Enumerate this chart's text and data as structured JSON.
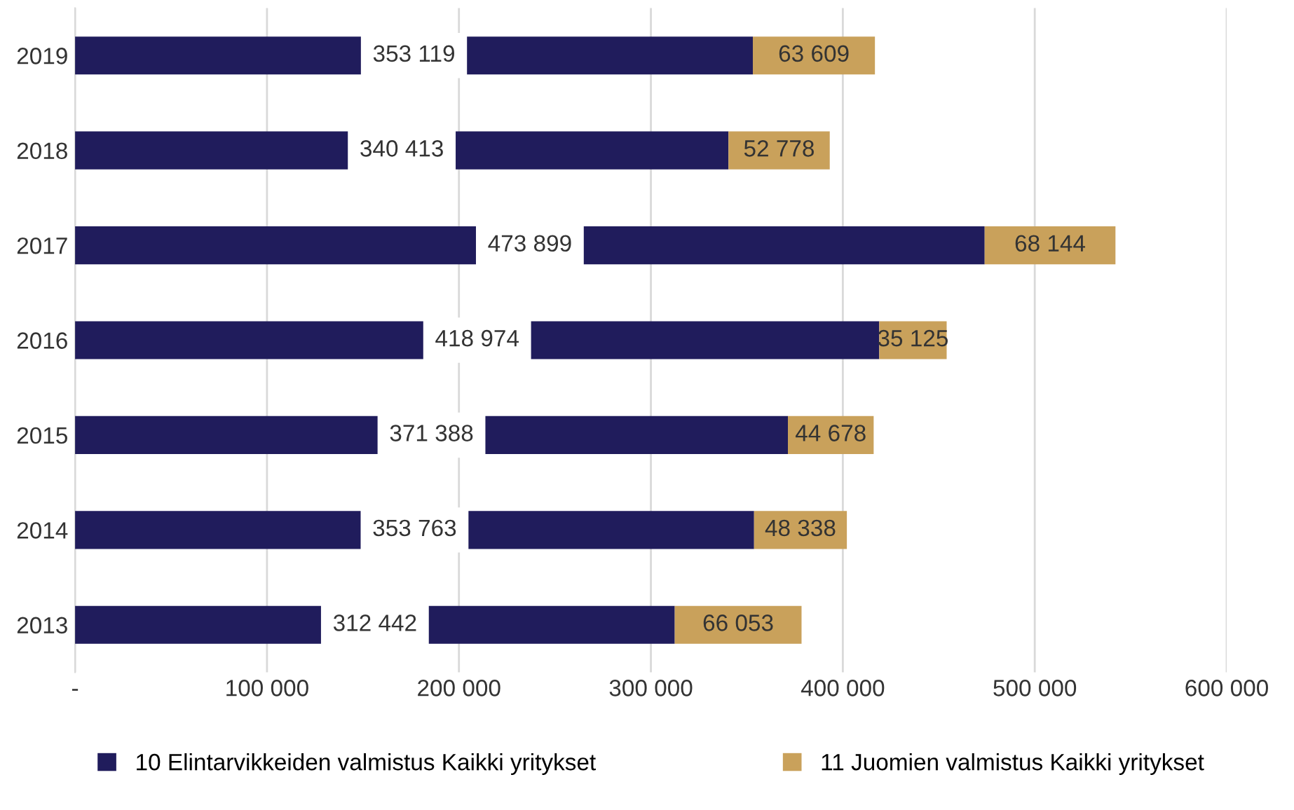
{
  "chart_data": {
    "type": "bar",
    "orientation": "horizontal",
    "stacked": true,
    "categories": [
      "2019",
      "2018",
      "2017",
      "2016",
      "2015",
      "2014",
      "2013"
    ],
    "series": [
      {
        "name": "10 Elintarvikkeiden valmistus Kaikki yritykset",
        "color": "#201c5c",
        "values": [
          353119,
          340413,
          473899,
          418974,
          371388,
          353763,
          312442
        ],
        "value_labels": [
          "353 119",
          "340 413",
          "473 899",
          "418 974",
          "371 388",
          "353 763",
          "312 442"
        ]
      },
      {
        "name": "11 Juomien valmistus Kaikki yritykset",
        "color": "#c9a15b",
        "values": [
          63609,
          52778,
          68144,
          35125,
          44678,
          48338,
          66053
        ],
        "value_labels": [
          "63 609",
          "52 778",
          "68 144",
          "35 125",
          "44 678",
          "48 338",
          "66 053"
        ]
      }
    ],
    "xlim": [
      0,
      600000
    ],
    "xticks": [
      {
        "value": 0,
        "label": "-"
      },
      {
        "value": 100000,
        "label": "100 000"
      },
      {
        "value": 200000,
        "label": "200 000"
      },
      {
        "value": 300000,
        "label": "300 000"
      },
      {
        "value": 400000,
        "label": "400 000"
      },
      {
        "value": 500000,
        "label": "500 000"
      },
      {
        "value": 600000,
        "label": "600 000"
      }
    ],
    "grid": "x",
    "legend": "bottom"
  }
}
